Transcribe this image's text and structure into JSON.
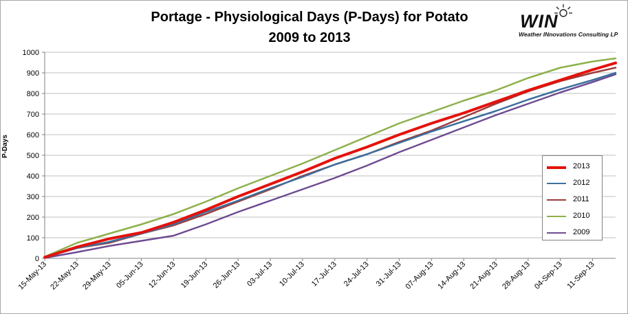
{
  "header": {
    "title_line1": "Portage - Physiological Days (P-Days) for Potato",
    "title_line2": "2009 to 2013"
  },
  "logo": {
    "word": "WIN",
    "tagline": "Weather INnovations Consulting LP"
  },
  "chart_data": {
    "type": "line",
    "title": "Portage - Physiological Days (P-Days) for Potato 2009 to 2013",
    "ylabel": "P-Days",
    "xlabel": "",
    "ylim": [
      0,
      1000
    ],
    "yticks": [
      0,
      100,
      200,
      300,
      400,
      500,
      600,
      700,
      800,
      900,
      1000
    ],
    "x_tick_labels": [
      "15-May-13",
      "22-May-13",
      "29-May-13",
      "05-Jun-13",
      "12-Jun-13",
      "19-Jun-13",
      "26-Jun-13",
      "03-Jul-13",
      "10-Jul-13",
      "17-Jul-13",
      "24-Jul-13",
      "31-Jul-13",
      "07-Aug-13",
      "14-Aug-13",
      "21-Aug-13",
      "28-Aug-13",
      "04-Sep-13",
      "11-Sep-13"
    ],
    "xrange": [
      "15-May-13",
      "16-Sep-13"
    ],
    "grid": "horizontal",
    "legend_position": "right",
    "x": [
      "15-May-13",
      "22-May-13",
      "29-May-13",
      "05-Jun-13",
      "12-Jun-13",
      "19-Jun-13",
      "26-Jun-13",
      "03-Jul-13",
      "10-Jul-13",
      "17-Jul-13",
      "24-Jul-13",
      "31-Jul-13",
      "07-Aug-13",
      "14-Aug-13",
      "21-Aug-13",
      "28-Aug-13",
      "04-Sep-13",
      "11-Sep-13",
      "16-Sep-13"
    ],
    "series": [
      {
        "name": "2013",
        "color": "#e3120b",
        "width": 4,
        "values": [
          5,
          55,
          95,
          125,
          175,
          235,
          300,
          360,
          420,
          485,
          540,
          600,
          655,
          705,
          760,
          815,
          865,
          915,
          948
        ]
      },
      {
        "name": "2012",
        "color": "#3c6f9e",
        "width": 2.5,
        "values": [
          5,
          50,
          80,
          120,
          165,
          225,
          280,
          340,
          395,
          455,
          505,
          560,
          615,
          665,
          715,
          770,
          820,
          865,
          900
        ]
      },
      {
        "name": "2011",
        "color": "#9b3b3a",
        "width": 2.5,
        "values": [
          5,
          50,
          75,
          120,
          160,
          215,
          275,
          335,
          400,
          455,
          505,
          565,
          620,
          685,
          750,
          810,
          860,
          900,
          925
        ]
      },
      {
        "name": "2010",
        "color": "#8db04a",
        "width": 2.5,
        "values": [
          8,
          75,
          120,
          165,
          215,
          275,
          340,
          400,
          460,
          525,
          590,
          655,
          710,
          765,
          815,
          875,
          925,
          955,
          970
        ]
      },
      {
        "name": "2009",
        "color": "#6e4b91",
        "width": 2.5,
        "values": [
          2,
          30,
          60,
          85,
          110,
          165,
          225,
          280,
          335,
          390,
          450,
          515,
          575,
          635,
          695,
          750,
          805,
          855,
          893
        ]
      }
    ]
  }
}
